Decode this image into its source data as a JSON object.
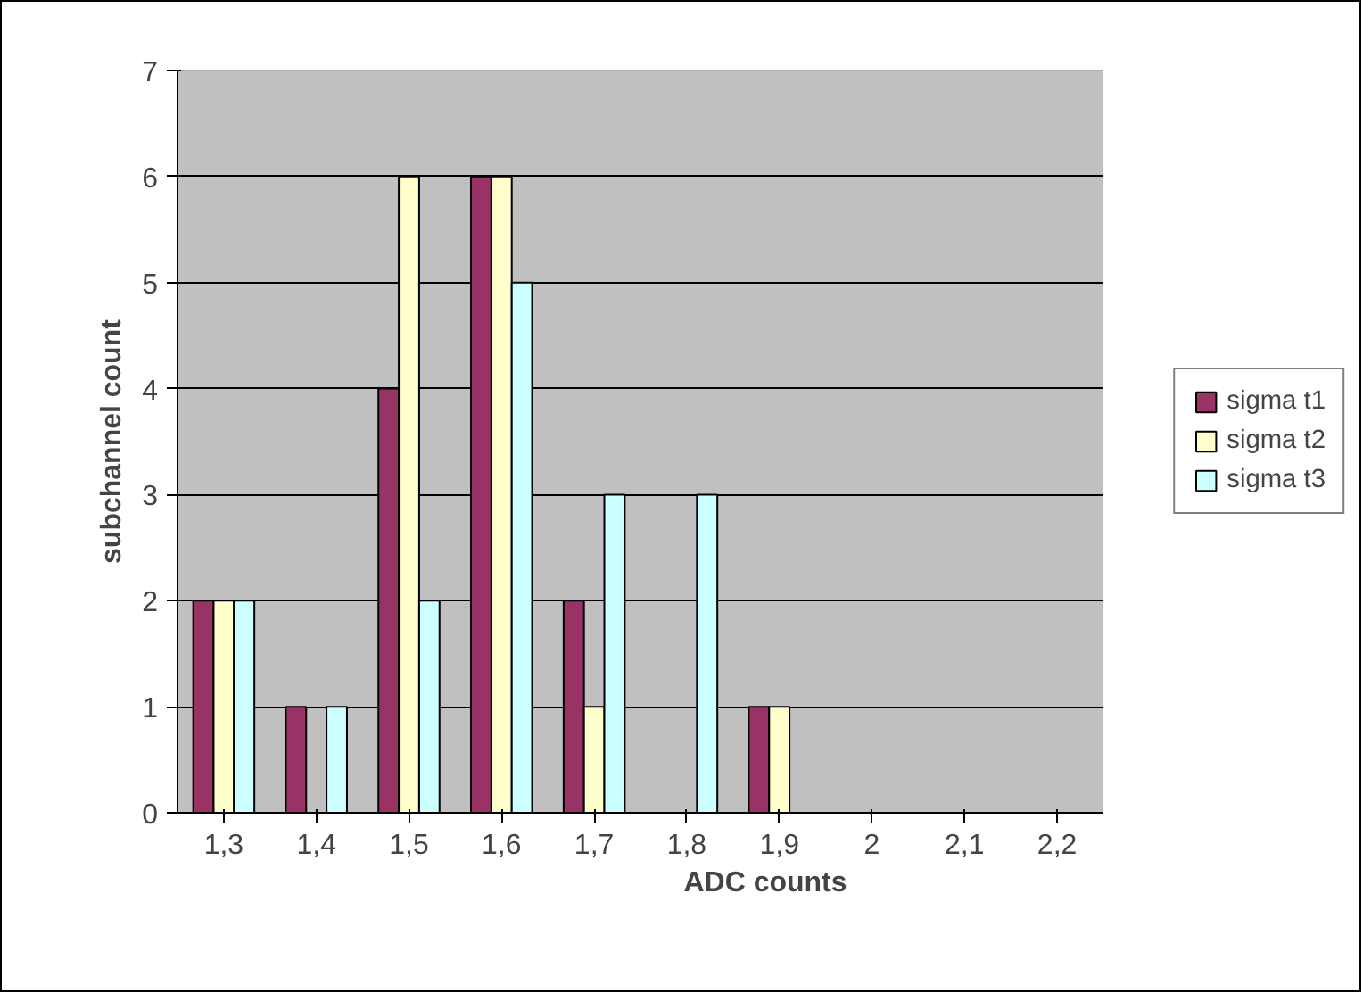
{
  "chart_data": {
    "type": "bar",
    "xlabel": "ADC counts",
    "ylabel": "subchannel count",
    "categories": [
      "1,3",
      "1,4",
      "1,5",
      "1,6",
      "1,7",
      "1,8",
      "1,9",
      "2",
      "2,1",
      "2,2"
    ],
    "series": [
      {
        "name": "sigma t1",
        "color": "#993366",
        "values": [
          2,
          1,
          4,
          6,
          2,
          0,
          1,
          0,
          0,
          0
        ]
      },
      {
        "name": "sigma t2",
        "color": "#ffffcc",
        "values": [
          2,
          0,
          6,
          6,
          1,
          0,
          1,
          0,
          0,
          0
        ]
      },
      {
        "name": "sigma t3",
        "color": "#ccffff",
        "values": [
          2,
          1,
          2,
          5,
          3,
          3,
          0,
          0,
          0,
          0
        ]
      }
    ],
    "ylim": [
      0,
      7
    ],
    "yticks": [
      0,
      1,
      2,
      3,
      4,
      5,
      6,
      7
    ],
    "grid": "y",
    "legend": "right"
  }
}
